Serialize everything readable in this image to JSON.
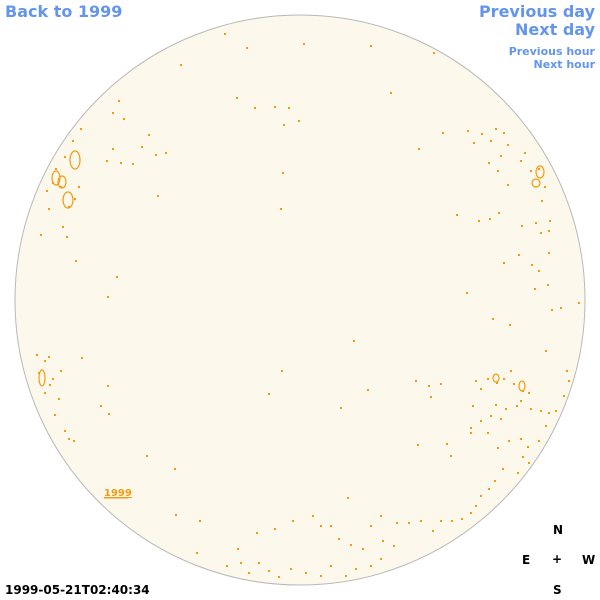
{
  "nav": {
    "back": "Back to 1999",
    "previous_day": "Previous day",
    "next_day": "Next day",
    "previous_hour": "Previous hour",
    "next_hour": "Next hour"
  },
  "disk": {
    "fill_color": "#fdf8ec",
    "edge_color": "#b8b8b8",
    "feature_color": "#f59a10",
    "year_label": "1999"
  },
  "compass": {
    "n": "N",
    "e": "E",
    "center": "+",
    "w": "W",
    "s": "S"
  },
  "timestamp": "1999-05-21T02:40:34"
}
